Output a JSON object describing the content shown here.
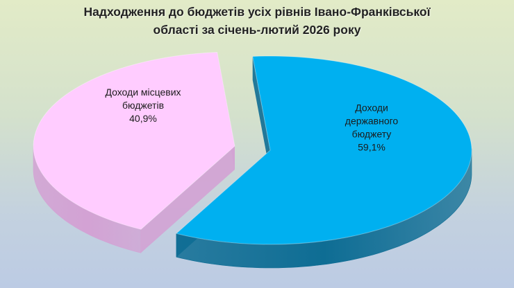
{
  "title": {
    "line1": "Надходження до бюджетів усіх рівнів Івано-Франківської",
    "line2": "області за січень-лютий 2026 року"
  },
  "chart_data": {
    "type": "pie",
    "style": "3d-exploded",
    "title": "Надходження до бюджетів усіх рівнів Івано-Франківської області за січень-лютий 2026 року",
    "slices": [
      {
        "name": "Доходи державного бюджету",
        "label_lines": [
          "Доходи",
          "державного",
          "бюджету"
        ],
        "value": 59.1,
        "value_label": "59,1%",
        "color": "#00b0f0",
        "side_color": "#0e6d94"
      },
      {
        "name": "Доходи місцевих бюджетів",
        "label_lines": [
          "Доходи місцевих",
          "бюджетів"
        ],
        "value": 40.9,
        "value_label": "40,9%",
        "color": "#ffccff",
        "side_color": "#d3a2d4"
      }
    ],
    "legend": "none",
    "data_labels": "inside"
  }
}
